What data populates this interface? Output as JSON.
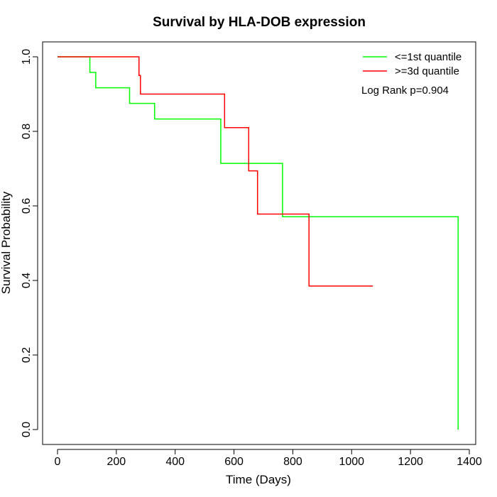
{
  "chart_data": {
    "type": "line",
    "title": "Survival by HLA-DOB expression",
    "xlabel": "Time (Days)",
    "ylabel": "Survival Probability",
    "xlim": [
      0,
      1400
    ],
    "ylim": [
      0,
      1.0
    ],
    "xticks": [
      0,
      200,
      400,
      600,
      800,
      1000,
      1200,
      1400
    ],
    "yticks": [
      0.0,
      0.2,
      0.4,
      0.6,
      0.8,
      1.0
    ],
    "xtick_labels": [
      "0",
      "200",
      "400",
      "600",
      "800",
      "1000",
      "1200",
      "1400"
    ],
    "ytick_labels": [
      "0.0",
      "0.2",
      "0.4",
      "0.6",
      "0.8",
      "1.0"
    ],
    "step": true,
    "legend_position": "top-right",
    "annotation": "Log Rank p=0.904",
    "series": [
      {
        "name": "<=1st quantile",
        "color": "#00ff00",
        "x": [
          0,
          110,
          130,
          245,
          330,
          555,
          765,
          1362,
          1362
        ],
        "y": [
          1.0,
          0.958,
          0.917,
          0.875,
          0.833,
          0.714,
          0.571,
          0.571,
          0.0
        ]
      },
      {
        "name": ">=3d quantile",
        "color": "#ff0000",
        "x": [
          0,
          277,
          282,
          568,
          650,
          680,
          855,
          1072
        ],
        "y": [
          1.0,
          0.95,
          0.9,
          0.81,
          0.694,
          0.578,
          0.385,
          0.385
        ]
      }
    ]
  }
}
